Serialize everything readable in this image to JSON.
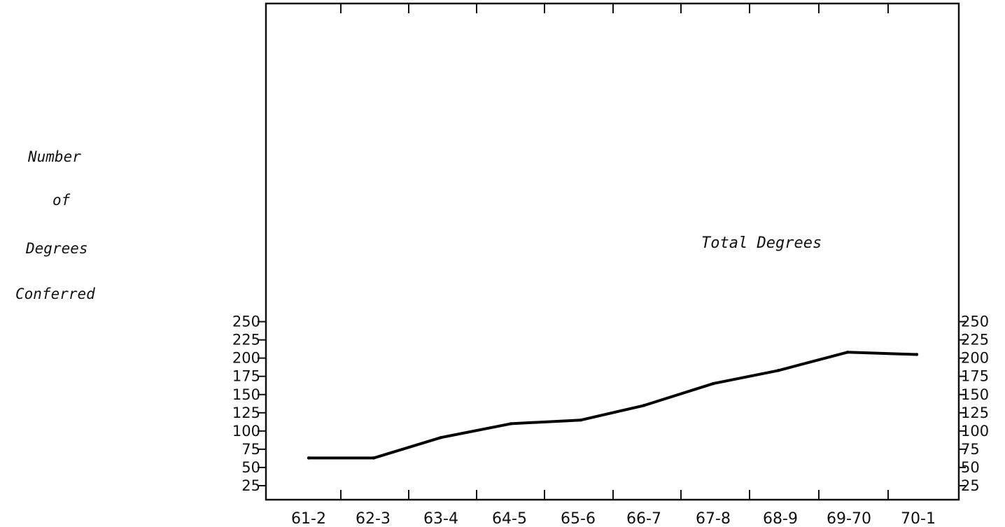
{
  "chart_data": {
    "type": "line",
    "title": "",
    "ylabel_lines": [
      "Number",
      "of",
      "Degrees",
      "Conferred"
    ],
    "xlabel": "",
    "categories": [
      "61-2",
      "62-3",
      "63-4",
      "64-5",
      "65-6",
      "66-7",
      "67-8",
      "68-9",
      "69-70",
      "70-1"
    ],
    "series": [
      {
        "name": "Total Degrees",
        "values": [
          63,
          63,
          91,
          110,
          115,
          135,
          165,
          183,
          208,
          205
        ]
      }
    ],
    "annotation": "Total Degrees",
    "yticks": [
      25,
      50,
      75,
      100,
      125,
      150,
      175,
      200,
      225,
      250
    ],
    "yticks_right": [
      25,
      50,
      75,
      100,
      125,
      150,
      175,
      200,
      225,
      250
    ],
    "ylim": [
      0,
      275
    ],
    "grid": false,
    "legend": "none",
    "line_color": "#000000"
  }
}
